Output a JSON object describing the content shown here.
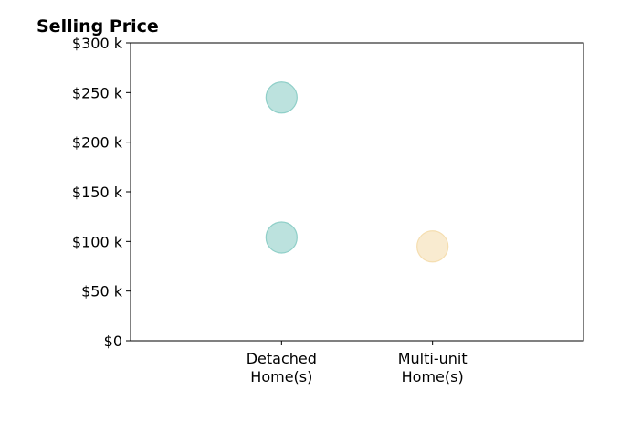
{
  "chart_data": {
    "type": "scatter",
    "title": "Selling Price",
    "xlabel": "",
    "ylabel": "",
    "categories": [
      "Detached Home(s)",
      "Multi-unit Home(s)"
    ],
    "category_lines": [
      [
        "Detached",
        "Home(s)"
      ],
      [
        "Multi-unit",
        "Home(s)"
      ]
    ],
    "xlim": [
      -1,
      2
    ],
    "ylim": [
      0,
      300000
    ],
    "yticks": [
      0,
      50000,
      100000,
      150000,
      200000,
      250000,
      300000
    ],
    "ytick_labels": [
      "$0",
      "$50 k",
      "$100 k",
      "$150 k",
      "$200 k",
      "$250 k",
      "$300 k"
    ],
    "points": [
      {
        "category": "Detached Home(s)",
        "value": 245000,
        "color": "#8fcfc8"
      },
      {
        "category": "Detached Home(s)",
        "value": 104000,
        "color": "#8fcfc8"
      },
      {
        "category": "Multi-unit Home(s)",
        "value": 95000,
        "color": "#f5deb0"
      }
    ],
    "grid": false,
    "legend": "none"
  }
}
